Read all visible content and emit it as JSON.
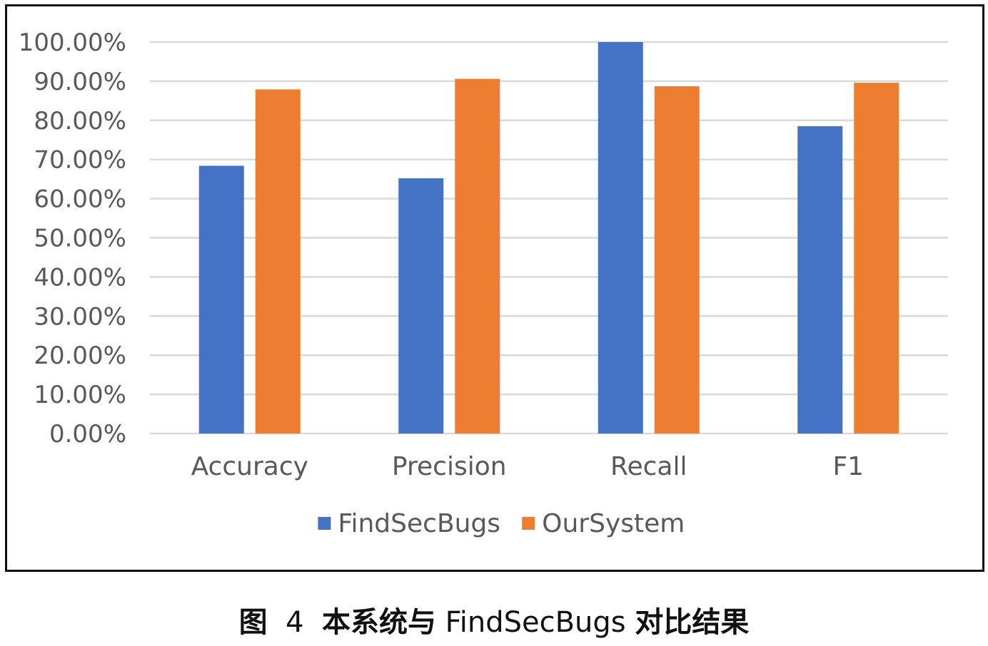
{
  "chart_data": {
    "type": "bar",
    "categories": [
      "Accuracy",
      "Precision",
      "Recall",
      "F1"
    ],
    "series": [
      {
        "name": "FindSecBugs",
        "color": "#4472C4",
        "values": [
          0.684,
          0.652,
          1.0,
          0.785
        ]
      },
      {
        "name": "OurSystem",
        "color": "#ED7D31",
        "values": [
          0.879,
          0.906,
          0.887,
          0.896
        ]
      }
    ],
    "title": "",
    "xlabel": "",
    "ylabel": "",
    "ylim": [
      0,
      1
    ],
    "y_ticks": [
      "0.00%",
      "10.00%",
      "20.00%",
      "30.00%",
      "40.00%",
      "50.00%",
      "60.00%",
      "70.00%",
      "80.00%",
      "90.00%",
      "100.00%"
    ],
    "y_tick_values": [
      0,
      0.1,
      0.2,
      0.3,
      0.4,
      0.5,
      0.6,
      0.7,
      0.8,
      0.9,
      1.0
    ],
    "grid": true,
    "grid_color": "#D9D9D9",
    "legend_position": "bottom"
  },
  "caption": {
    "label": "图",
    "number": "4",
    "text_before": "本系统与",
    "name": "FindSecBugs",
    "text_after": "对比结果"
  }
}
